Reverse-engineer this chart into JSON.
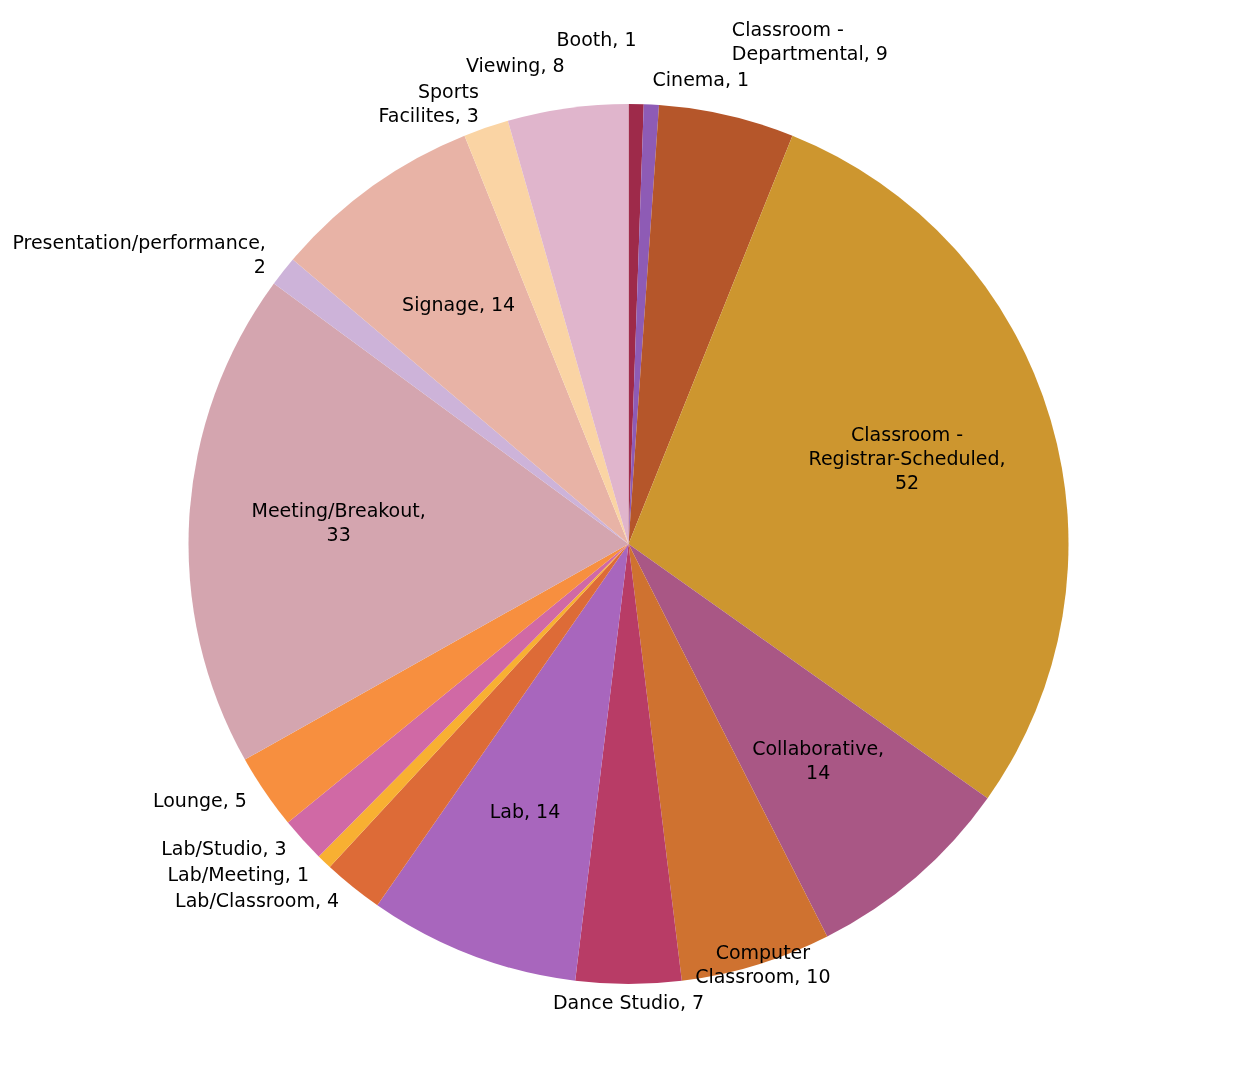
{
  "chart_data": {
    "type": "pie",
    "categories": [
      "Booth",
      "Cinema",
      "Classroom - Departmental",
      "Classroom - Registrar-Scheduled",
      "Collaborative",
      "Computer Classroom",
      "Dance Studio",
      "Lab",
      "Lab/Classroom",
      "Lab/Meeting",
      "Lab/Studio",
      "Lounge",
      "Meeting/Breakout",
      "Presentation/performance",
      "Signage",
      "Sports Facilites",
      "Viewing"
    ],
    "values": [
      1,
      1,
      9,
      52,
      14,
      10,
      7,
      14,
      4,
      1,
      3,
      5,
      33,
      2,
      14,
      3,
      8
    ],
    "value_labels": [
      ", 1",
      ", 1",
      ", 9",
      ", 52",
      ", 14",
      ", 10",
      ", 7",
      ", 14",
      ", 4",
      ", 1",
      ", 3",
      ", 5",
      ", 33",
      ", 2",
      ", 14",
      ", 3",
      ", 8"
    ],
    "colors": [
      "#9e2a4a",
      "#8e5bb5",
      "#b5562a",
      "#cd962f",
      "#a95785",
      "#cf7230",
      "#b83c66",
      "#a866bd",
      "#dd6b37",
      "#f8b032",
      "#d069a5",
      "#f78f3f",
      "#d4a5af",
      "#cdb3d9",
      "#e8b3a6",
      "#fad4a4",
      "#e0b5cc"
    ]
  }
}
